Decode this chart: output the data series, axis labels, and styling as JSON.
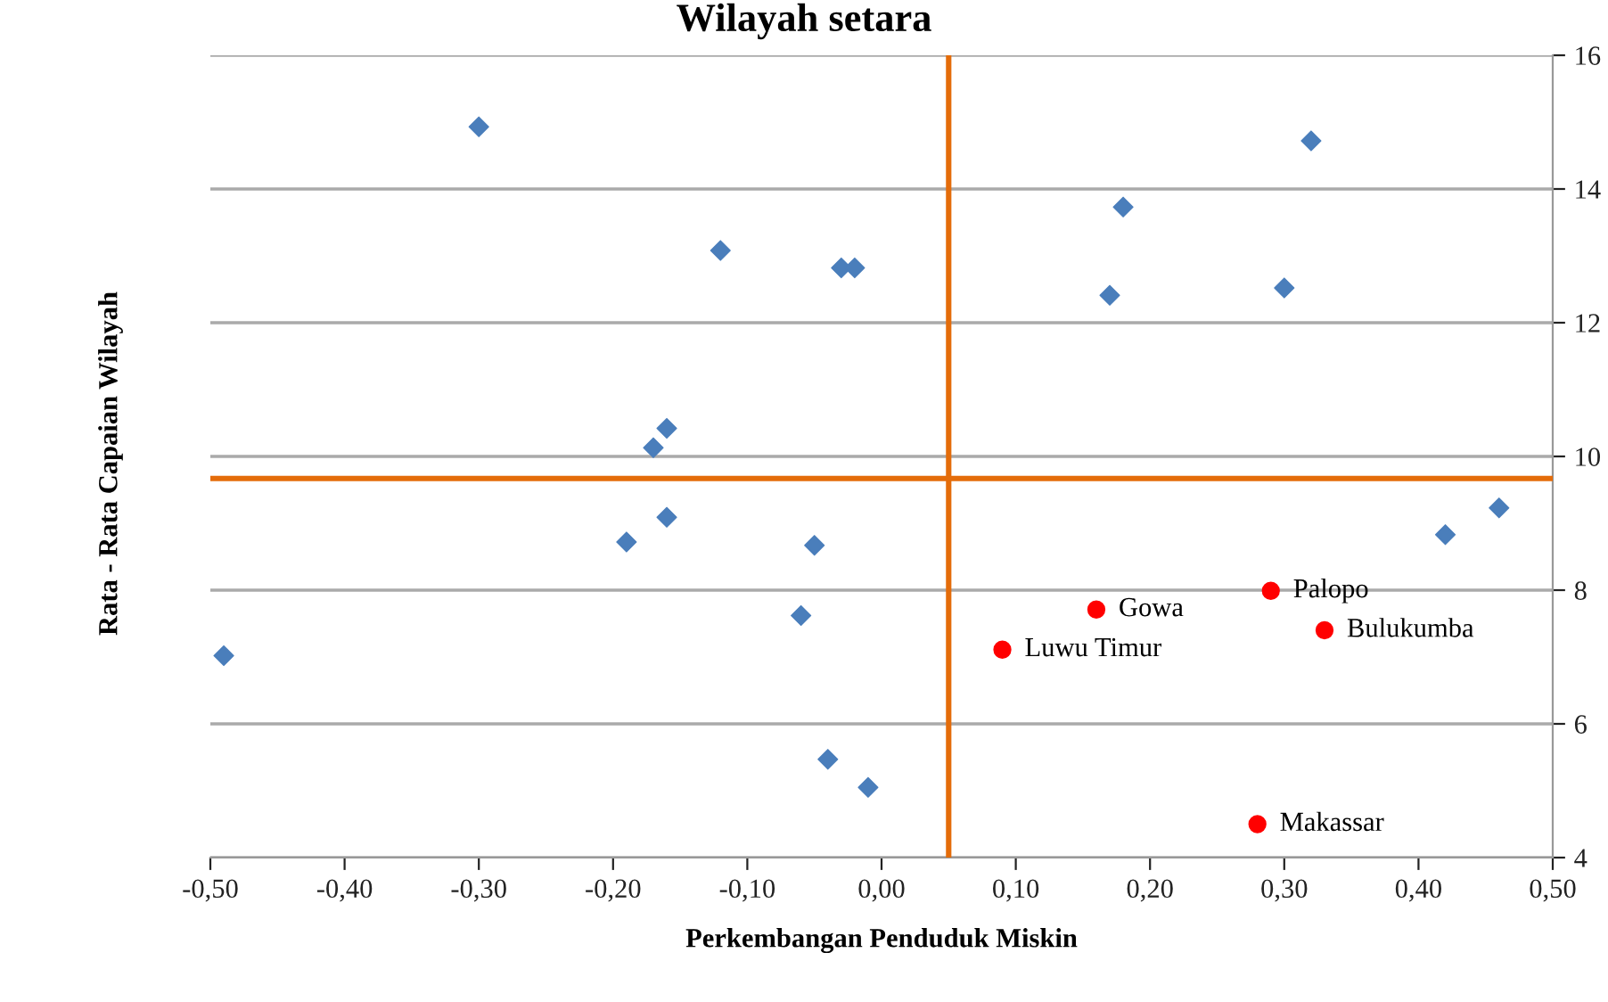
{
  "chart_data": {
    "type": "scatter",
    "title": "Wilayah setara",
    "xlabel": "Perkembangan Penduduk Miskin",
    "ylabel": "Rata - Rata Capaian Wilayah",
    "xlim": [
      -0.5,
      0.5
    ],
    "ylim": [
      4,
      16
    ],
    "xticks": [
      {
        "value": -0.5,
        "label": "-0,50"
      },
      {
        "value": -0.4,
        "label": "-0,40"
      },
      {
        "value": -0.3,
        "label": "-0,30"
      },
      {
        "value": -0.2,
        "label": "-0,20"
      },
      {
        "value": -0.1,
        "label": "-0,10"
      },
      {
        "value": 0,
        "label": "0,00"
      },
      {
        "value": 0.1,
        "label": "0,10"
      },
      {
        "value": 0.2,
        "label": "0,20"
      },
      {
        "value": 0.3,
        "label": "0,30"
      },
      {
        "value": 0.4,
        "label": "0,40"
      },
      {
        "value": 0.5,
        "label": "0,50"
      }
    ],
    "yticks": [
      4,
      6,
      8,
      10,
      12,
      14,
      16
    ],
    "grid": "y",
    "legend": false,
    "series": [
      {
        "color": "#4a7ebb",
        "marker": "diamond",
        "x": [
          -0.3,
          0.18,
          0.32,
          -0.12,
          -0.03,
          -0.02,
          0.17,
          0.3,
          -0.16,
          -0.17,
          -0.16,
          -0.19,
          -0.05,
          -0.06,
          -0.49,
          -0.04,
          -0.01,
          0.42,
          0.46
        ],
        "values": [
          14.93,
          13.73,
          14.72,
          13.08,
          12.82,
          12.82,
          12.41,
          12.52,
          10.42,
          10.13,
          9.09,
          8.72,
          8.67,
          7.62,
          7.02,
          5.47,
          5.05,
          8.83,
          9.23
        ]
      },
      {
        "color": "#ff0000",
        "marker": "circle",
        "x": [
          0.16,
          0.29,
          0.33,
          0.09,
          0.28
        ],
        "values": [
          7.71,
          7.99,
          7.4,
          7.11,
          4.5
        ]
      }
    ],
    "ref_lines": [
      {
        "axis": "x",
        "value": 0.05,
        "color": "#e46c0a"
      },
      {
        "axis": "y",
        "value": 9.67,
        "color": "#e46c0a"
      }
    ],
    "annotations": [
      {
        "text": "Gowa",
        "x": 0.16,
        "y": 7.71
      },
      {
        "text": "Palopo",
        "x": 0.29,
        "y": 7.99
      },
      {
        "text": "Bulukumba",
        "x": 0.33,
        "y": 7.4
      },
      {
        "text": "Luwu Timur",
        "x": 0.09,
        "y": 7.11
      },
      {
        "text": "Makassar",
        "x": 0.28,
        "y": 4.5
      }
    ]
  }
}
